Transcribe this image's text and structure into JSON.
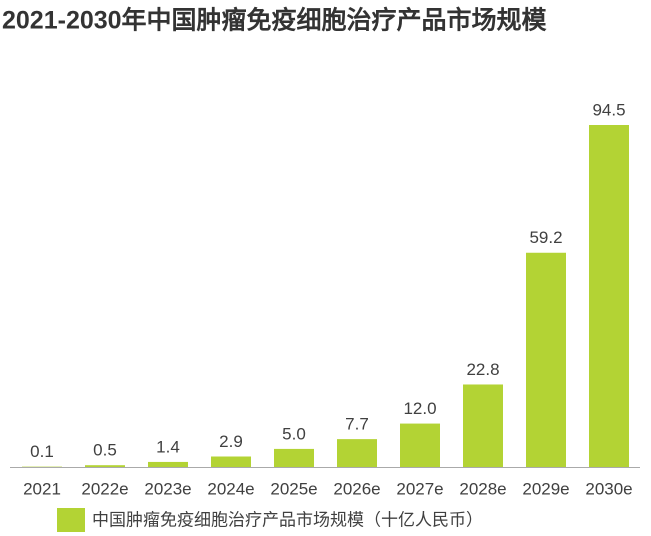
{
  "chart_data": {
    "type": "bar",
    "title": "2021-2030年中国肿瘤免疫细胞治疗产品市场规模",
    "categories": [
      "2021",
      "2022e",
      "2023e",
      "2024e",
      "2025e",
      "2026e",
      "2027e",
      "2028e",
      "2029e",
      "2030e"
    ],
    "series": [
      {
        "name": "中国肿瘤免疫细胞治疗产品市场规模（十亿人民币）",
        "color": "#b3d334",
        "values": [
          0.1,
          0.5,
          1.4,
          2.9,
          5.0,
          7.7,
          12.0,
          22.8,
          59.2,
          94.5
        ],
        "value_labels": [
          "0.1",
          "0.5",
          "1.4",
          "2.9",
          "5.0",
          "7.7",
          "12.0",
          "22.8",
          "59.2",
          "94.5"
        ]
      }
    ]
  }
}
